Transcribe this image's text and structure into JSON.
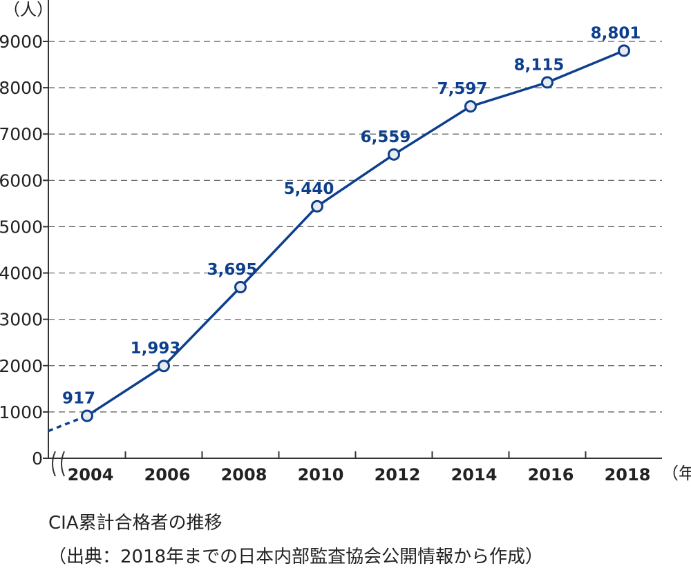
{
  "chart_data": {
    "type": "line",
    "title": "CIA累計合格者の推移",
    "source": "（出典：2018年までの日本内部監査協会公開情報から作成）",
    "y_unit": "（人）",
    "x_unit": "（年）",
    "categories": [
      "2004",
      "2006",
      "2008",
      "2010",
      "2012",
      "2014",
      "2016",
      "2018"
    ],
    "values": [
      917,
      1993,
      3695,
      5440,
      6559,
      7597,
      8115,
      8801
    ],
    "value_labels": [
      "917",
      "1,993",
      "3,695",
      "5,440",
      "6,559",
      "7,597",
      "8,115",
      "8,801"
    ],
    "ylim": [
      0,
      9000
    ],
    "y_ticks": [
      "0",
      "1000",
      "2000",
      "3000",
      "4000",
      "5000",
      "6000",
      "7000",
      "8000",
      "9000"
    ],
    "grid": true,
    "axis_break": true,
    "colors": {
      "line": "#0d3f8c",
      "label": "#0d3f8c",
      "grid": "#555555",
      "marker_fill": "#e8ebf0"
    }
  }
}
